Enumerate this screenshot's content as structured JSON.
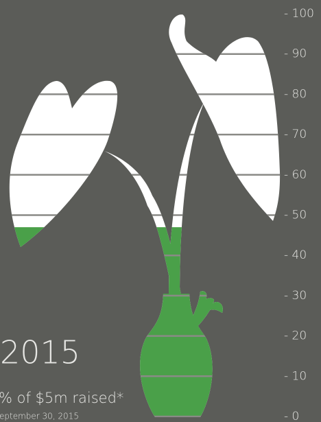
{
  "chart_data": {
    "type": "progress",
    "title": "2015",
    "subtitle": "% of $5m raised*",
    "note": "eptember 30, 2015",
    "value": 47,
    "color": "#4aa049",
    "empty_color": "#ffffff",
    "ylim": [
      0,
      100
    ],
    "yticks": [
      {
        "value": 100,
        "label": "- 100"
      },
      {
        "value": 90,
        "label": "- 90"
      },
      {
        "value": 80,
        "label": "- 80"
      },
      {
        "value": 70,
        "label": "- 70"
      },
      {
        "value": 60,
        "label": "- 60"
      },
      {
        "value": 50,
        "label": "- 50"
      },
      {
        "value": 40,
        "label": "- 40"
      },
      {
        "value": 30,
        "label": "- 30"
      },
      {
        "value": 20,
        "label": "- 20"
      },
      {
        "value": 10,
        "label": "- 10"
      },
      {
        "value": 0,
        "label": "- 0"
      }
    ],
    "grid": true
  }
}
